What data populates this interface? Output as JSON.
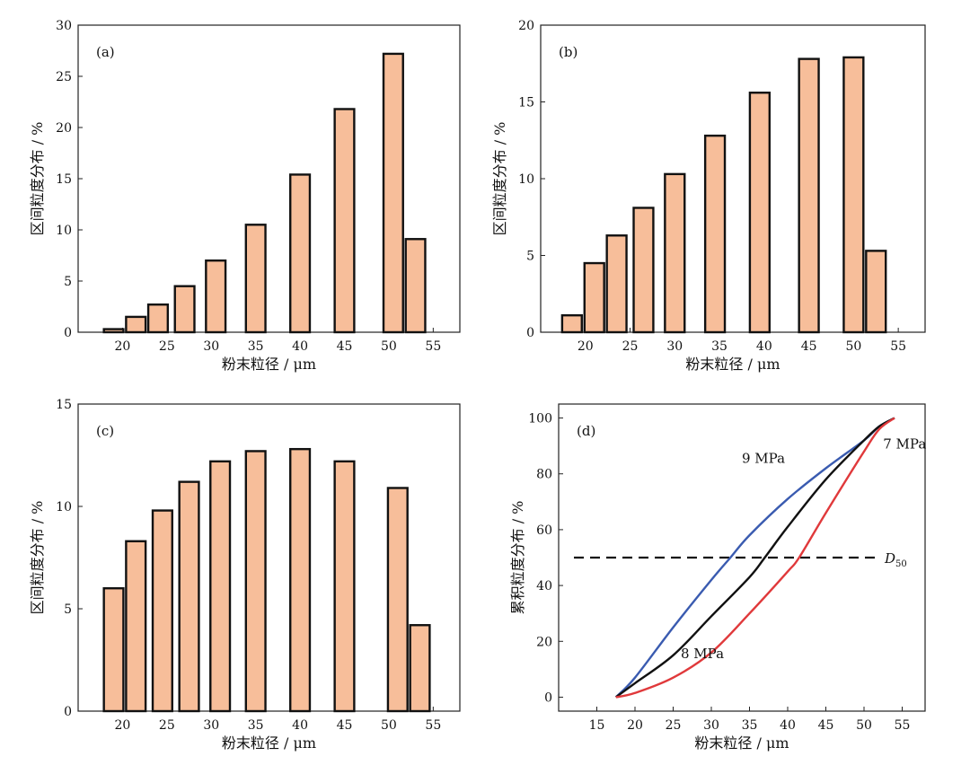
{
  "colors": {
    "bar_fill": "#F7BE9A",
    "bar_edge": "#111111",
    "axis": "#222222",
    "curve_9mpa": "#3A5BB0",
    "curve_8mpa": "#111111",
    "curve_7mpa": "#E0393B",
    "d50_line": "#111111"
  },
  "chart_data": [
    {
      "panel": "a",
      "type": "bar",
      "label": "(a)",
      "xlabel": "粉末粒径 / μm",
      "ylabel": "区间粒度分布 / %",
      "xlim": [
        15,
        58
      ],
      "ylim": [
        0,
        30
      ],
      "yticks": [
        0,
        5,
        10,
        15,
        20,
        25,
        30
      ],
      "xticks": [
        20,
        25,
        30,
        35,
        40,
        45,
        50,
        55
      ],
      "bar_width": 2.2,
      "x": [
        19,
        21.5,
        24,
        27,
        30.5,
        35,
        40,
        45,
        50.5,
        53
      ],
      "values": [
        0.3,
        1.5,
        2.7,
        4.5,
        7.0,
        10.5,
        15.4,
        21.8,
        27.2,
        9.1
      ]
    },
    {
      "panel": "b",
      "type": "bar",
      "label": "(b)",
      "xlabel": "粉末粒径 / μm",
      "ylabel": "区间粒度分布 / %",
      "xlim": [
        15,
        58
      ],
      "ylim": [
        0,
        20
      ],
      "yticks": [
        0,
        5,
        10,
        15,
        20
      ],
      "xticks": [
        20,
        25,
        30,
        35,
        40,
        45,
        50,
        55
      ],
      "bar_width": 2.2,
      "x": [
        18.5,
        21,
        23.5,
        26.5,
        30,
        34.5,
        39.5,
        45,
        50,
        52.5
      ],
      "values": [
        1.1,
        4.5,
        6.3,
        8.1,
        10.3,
        12.8,
        15.6,
        17.8,
        17.9,
        5.3
      ]
    },
    {
      "panel": "c",
      "type": "bar",
      "label": "(c)",
      "xlabel": "粉末粒径 / μm",
      "ylabel": "区间粒度分布 / %",
      "xlim": [
        15,
        58
      ],
      "ylim": [
        0,
        15
      ],
      "yticks": [
        0,
        5,
        10,
        15
      ],
      "xticks": [
        20,
        25,
        30,
        35,
        40,
        45,
        50,
        55
      ],
      "bar_width": 2.2,
      "x": [
        19,
        21.5,
        24.5,
        27.5,
        31,
        35,
        40,
        45,
        51,
        53.5
      ],
      "values": [
        6.0,
        8.3,
        9.8,
        11.2,
        12.2,
        12.7,
        12.8,
        12.2,
        10.9,
        4.2
      ]
    },
    {
      "panel": "d",
      "type": "line",
      "label": "(d)",
      "xlabel": "粉末粒径 / μm",
      "ylabel": "累积粒度分布 / %",
      "xlim": [
        10,
        58
      ],
      "ylim": [
        -5,
        105
      ],
      "yticks": [
        0,
        20,
        40,
        60,
        80,
        100
      ],
      "xticks": [
        15,
        20,
        25,
        30,
        35,
        40,
        45,
        50,
        55
      ],
      "series": [
        {
          "name": "9 MPa",
          "x": [
            17.5,
            20,
            25,
            30,
            32.5,
            35,
            40,
            45,
            50,
            52,
            54
          ],
          "y": [
            0,
            7,
            25,
            42,
            50,
            58,
            71,
            82,
            92,
            97,
            100
          ]
        },
        {
          "name": "8 MPa",
          "x": [
            17.5,
            20,
            25,
            30,
            35,
            37,
            40,
            45,
            50,
            52,
            54
          ],
          "y": [
            0,
            5,
            15,
            29,
            43,
            50,
            61,
            78,
            92,
            97,
            100
          ]
        },
        {
          "name": "7 MPa",
          "x": [
            17.5,
            20,
            25,
            30,
            35,
            40,
            41.5,
            45,
            50,
            52,
            54
          ],
          "y": [
            0,
            1.5,
            7,
            16,
            30,
            45,
            50,
            66,
            88,
            96,
            100
          ]
        }
      ],
      "reference_line": {
        "y": 50,
        "x_from": 12,
        "x_to": 52,
        "label": "D",
        "label_sub": "50"
      },
      "annotations": [
        {
          "text": "9 MPa",
          "x": 34,
          "y": 84,
          "series": "9 MPa"
        },
        {
          "text": "8 MPa",
          "x": 26,
          "y": 14,
          "series": "8 MPa"
        },
        {
          "text": "7 MPa",
          "x": 52.5,
          "y": 89,
          "series": "7 MPa"
        }
      ]
    }
  ]
}
